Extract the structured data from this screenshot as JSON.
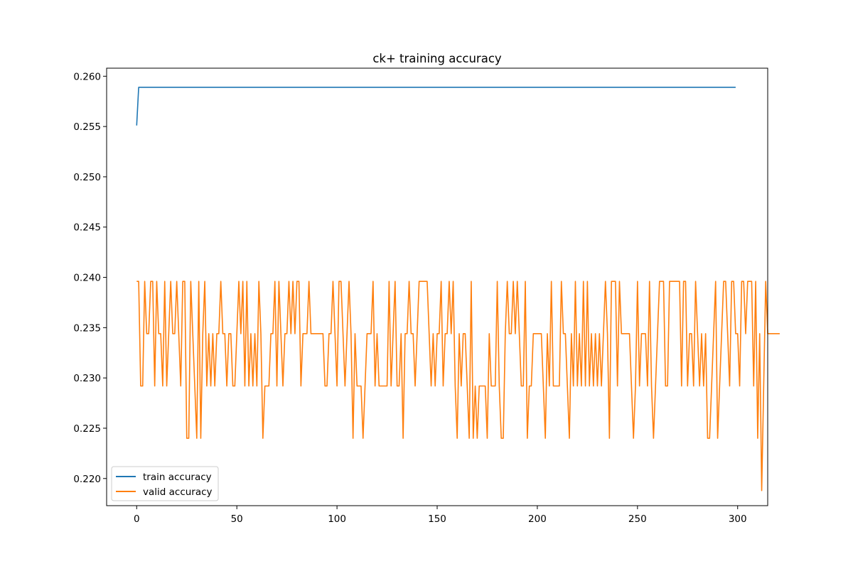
{
  "chart_data": {
    "type": "line",
    "title": "ck+ training accuracy",
    "xlabel": "",
    "ylabel": "",
    "xlim": [
      -15,
      315
    ],
    "ylim": [
      0.2173,
      0.2608
    ],
    "xticks": [
      0,
      50,
      100,
      150,
      200,
      250,
      300
    ],
    "yticks": [
      0.22,
      0.225,
      0.23,
      0.235,
      0.24,
      0.245,
      0.25,
      0.255,
      0.26
    ],
    "grid": false,
    "legend_position": "lower-left",
    "series": [
      {
        "name": "train accuracy",
        "color": "#1f77b4",
        "x_start": 0,
        "values": [
          0.2551,
          0.2589,
          0.2589,
          0.2589,
          0.2589,
          0.2589,
          0.2589,
          0.2589,
          0.2589,
          0.2589,
          0.2589,
          0.2589,
          0.2589,
          0.2589,
          0.2589,
          0.2589,
          0.2589,
          0.2589,
          0.2589,
          0.2589,
          0.2589,
          0.2589,
          0.2589,
          0.2589,
          0.2589,
          0.2589,
          0.2589,
          0.2589,
          0.2589,
          0.2589,
          0.2589,
          0.2589,
          0.2589,
          0.2589,
          0.2589,
          0.2589,
          0.2589,
          0.2589,
          0.2589,
          0.2589,
          0.2589,
          0.2589,
          0.2589,
          0.2589,
          0.2589,
          0.2589,
          0.2589,
          0.2589,
          0.2589,
          0.2589,
          0.2589,
          0.2589,
          0.2589,
          0.2589,
          0.2589,
          0.2589,
          0.2589,
          0.2589,
          0.2589,
          0.2589,
          0.2589,
          0.2589,
          0.2589,
          0.2589,
          0.2589,
          0.2589,
          0.2589,
          0.2589,
          0.2589,
          0.2589,
          0.2589,
          0.2589,
          0.2589,
          0.2589,
          0.2589,
          0.2589,
          0.2589,
          0.2589,
          0.2589,
          0.2589,
          0.2589,
          0.2589,
          0.2589,
          0.2589,
          0.2589,
          0.2589,
          0.2589,
          0.2589,
          0.2589,
          0.2589,
          0.2589,
          0.2589,
          0.2589,
          0.2589,
          0.2589,
          0.2589,
          0.2589,
          0.2589,
          0.2589,
          0.2589,
          0.2589,
          0.2589,
          0.2589,
          0.2589,
          0.2589,
          0.2589,
          0.2589,
          0.2589,
          0.2589,
          0.2589,
          0.2589,
          0.2589,
          0.2589,
          0.2589,
          0.2589,
          0.2589,
          0.2589,
          0.2589,
          0.2589,
          0.2589,
          0.2589,
          0.2589,
          0.2589,
          0.2589,
          0.2589,
          0.2589,
          0.2589,
          0.2589,
          0.2589,
          0.2589,
          0.2589,
          0.2589,
          0.2589,
          0.2589,
          0.2589,
          0.2589,
          0.2589,
          0.2589,
          0.2589,
          0.2589,
          0.2589,
          0.2589,
          0.2589,
          0.2589,
          0.2589,
          0.2589,
          0.2589,
          0.2589,
          0.2589,
          0.2589,
          0.2589,
          0.2589,
          0.2589,
          0.2589,
          0.2589,
          0.2589,
          0.2589,
          0.2589,
          0.2589,
          0.2589,
          0.2589,
          0.2589,
          0.2589,
          0.2589,
          0.2589,
          0.2589,
          0.2589,
          0.2589,
          0.2589,
          0.2589,
          0.2589,
          0.2589,
          0.2589,
          0.2589,
          0.2589,
          0.2589,
          0.2589,
          0.2589,
          0.2589,
          0.2589,
          0.2589,
          0.2589,
          0.2589,
          0.2589,
          0.2589,
          0.2589,
          0.2589,
          0.2589,
          0.2589,
          0.2589,
          0.2589,
          0.2589,
          0.2589,
          0.2589,
          0.2589,
          0.2589,
          0.2589,
          0.2589,
          0.2589,
          0.2589,
          0.2589,
          0.2589,
          0.2589,
          0.2589,
          0.2589,
          0.2589,
          0.2589,
          0.2589,
          0.2589,
          0.2589,
          0.2589,
          0.2589,
          0.2589,
          0.2589,
          0.2589,
          0.2589,
          0.2589,
          0.2589,
          0.2589,
          0.2589,
          0.2589,
          0.2589,
          0.2589,
          0.2589,
          0.2589,
          0.2589,
          0.2589,
          0.2589,
          0.2589,
          0.2589,
          0.2589,
          0.2589,
          0.2589,
          0.2589,
          0.2589,
          0.2589,
          0.2589,
          0.2589,
          0.2589,
          0.2589,
          0.2589,
          0.2589,
          0.2589,
          0.2589,
          0.2589,
          0.2589,
          0.2589,
          0.2589,
          0.2589,
          0.2589,
          0.2589,
          0.2589,
          0.2589,
          0.2589,
          0.2589,
          0.2589,
          0.2589,
          0.2589,
          0.2589,
          0.2589,
          0.2589,
          0.2589,
          0.2589,
          0.2589,
          0.2589,
          0.2589,
          0.2589,
          0.2589,
          0.2589,
          0.2589,
          0.2589,
          0.2589,
          0.2589,
          0.2589,
          0.2589,
          0.2589,
          0.2589,
          0.2589,
          0.2589,
          0.2589,
          0.2589,
          0.2589,
          0.2589,
          0.2589,
          0.2589,
          0.2589,
          0.2589,
          0.2589,
          0.2589,
          0.2589,
          0.2589,
          0.2589,
          0.2589,
          0.2589,
          0.2589,
          0.2589,
          0.2589,
          0.2589,
          0.2589,
          0.2589
        ]
      },
      {
        "name": "valid accuracy",
        "color": "#ff7f0e",
        "x_start": 0,
        "values": [
          0.2396,
          0.2396,
          0.2292,
          0.2292,
          0.2396,
          0.2344,
          0.2344,
          0.2396,
          0.2396,
          0.2292,
          0.2396,
          0.2344,
          0.2344,
          0.2292,
          0.2396,
          0.2292,
          0.2344,
          0.2396,
          0.2344,
          0.2344,
          0.2396,
          0.2344,
          0.2292,
          0.2396,
          0.2396,
          0.224,
          0.224,
          0.2396,
          0.2344,
          0.2292,
          0.224,
          0.2396,
          0.224,
          0.2344,
          0.2396,
          0.2292,
          0.2344,
          0.2292,
          0.2344,
          0.2292,
          0.2344,
          0.2344,
          0.2396,
          0.2344,
          0.2344,
          0.2292,
          0.2344,
          0.2344,
          0.2292,
          0.2292,
          0.2344,
          0.2396,
          0.2344,
          0.2396,
          0.2292,
          0.2396,
          0.2292,
          0.2344,
          0.2292,
          0.2344,
          0.2292,
          0.2396,
          0.2344,
          0.224,
          0.2292,
          0.2292,
          0.2292,
          0.2344,
          0.2344,
          0.2396,
          0.2292,
          0.2396,
          0.2344,
          0.2292,
          0.2344,
          0.2344,
          0.2396,
          0.2344,
          0.2396,
          0.2344,
          0.2396,
          0.2396,
          0.2292,
          0.2344,
          0.2344,
          0.2344,
          0.2396,
          0.2344,
          0.2344,
          0.2344,
          0.2344,
          0.2344,
          0.2344,
          0.2344,
          0.2292,
          0.2292,
          0.2344,
          0.2344,
          0.2396,
          0.2344,
          0.2292,
          0.2396,
          0.2396,
          0.2344,
          0.2292,
          0.2344,
          0.2396,
          0.2344,
          0.224,
          0.2344,
          0.2292,
          0.2292,
          0.2292,
          0.224,
          0.2292,
          0.2344,
          0.2344,
          0.2344,
          0.2396,
          0.2292,
          0.2344,
          0.2292,
          0.2292,
          0.2292,
          0.2292,
          0.2292,
          0.2396,
          0.2292,
          0.2344,
          0.2396,
          0.2292,
          0.2292,
          0.2344,
          0.224,
          0.2344,
          0.2344,
          0.2396,
          0.2344,
          0.2344,
          0.2292,
          0.2344,
          0.2396,
          0.2396,
          0.2396,
          0.2396,
          0.2396,
          0.2344,
          0.2292,
          0.2344,
          0.2292,
          0.2344,
          0.2344,
          0.2396,
          0.2292,
          0.2344,
          0.2344,
          0.2396,
          0.2344,
          0.2396,
          0.2292,
          0.224,
          0.2344,
          0.2292,
          0.2344,
          0.2344,
          0.2292,
          0.224,
          0.2396,
          0.224,
          0.2292,
          0.224,
          0.2292,
          0.2292,
          0.2292,
          0.2292,
          0.224,
          0.2344,
          0.2292,
          0.2292,
          0.2292,
          0.2396,
          0.2292,
          0.224,
          0.224,
          0.2344,
          0.2396,
          0.2344,
          0.2344,
          0.2396,
          0.2344,
          0.2396,
          0.2344,
          0.2292,
          0.2292,
          0.2396,
          0.224,
          0.2292,
          0.2292,
          0.2344,
          0.2344,
          0.2344,
          0.2344,
          0.2344,
          0.2292,
          0.224,
          0.2344,
          0.2292,
          0.2396,
          0.2292,
          0.2292,
          0.2292,
          0.2292,
          0.2396,
          0.2344,
          0.2344,
          0.2292,
          0.224,
          0.2344,
          0.2292,
          0.2396,
          0.2292,
          0.2344,
          0.2292,
          0.2396,
          0.2292,
          0.2396,
          0.2292,
          0.2344,
          0.2292,
          0.2344,
          0.2292,
          0.2344,
          0.2292,
          0.2344,
          0.2396,
          0.2344,
          0.224,
          0.2396,
          0.2396,
          0.2396,
          0.2292,
          0.2396,
          0.2344,
          0.2344,
          0.2344,
          0.2344,
          0.2344,
          0.2292,
          0.224,
          0.2292,
          0.2396,
          0.2292,
          0.2344,
          0.2344,
          0.2344,
          0.2292,
          0.2396,
          0.2292,
          0.224,
          0.2292,
          0.2344,
          0.2396,
          0.2396,
          0.2396,
          0.2292,
          0.2292,
          0.2396,
          0.2396,
          0.2396,
          0.2396,
          0.2396,
          0.2396,
          0.2292,
          0.2396,
          0.2396,
          0.2292,
          0.2344,
          0.2344,
          0.2292,
          0.2396,
          0.2344,
          0.2292,
          0.2344,
          0.2292,
          0.2344,
          0.224,
          0.224,
          0.2292,
          0.2344,
          0.2396,
          0.224,
          0.2292,
          0.2344,
          0.2396,
          0.2396,
          0.2344,
          0.2292,
          0.2396,
          0.2396,
          0.2344,
          0.2344,
          0.2292,
          0.2396,
          0.2396,
          0.2344,
          0.2396,
          0.2396,
          0.2396,
          0.2292,
          0.2396,
          0.224,
          0.2344,
          0.2188,
          0.2292,
          0.2396,
          0.2344,
          0.2344,
          0.2344,
          0.2344,
          0.2344,
          0.2344,
          0.2344
        ]
      }
    ]
  }
}
